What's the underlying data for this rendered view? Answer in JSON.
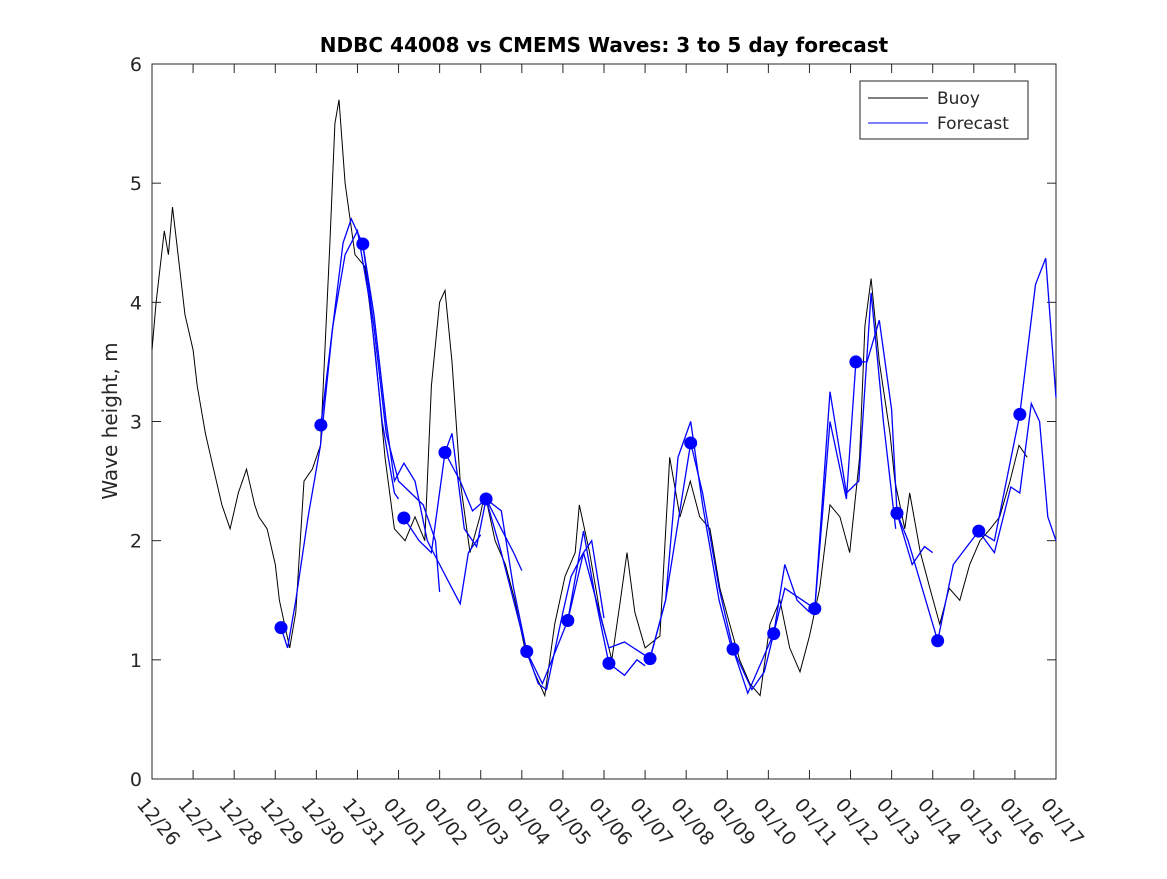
{
  "chart_data": {
    "type": "line",
    "title": "NDBC 44008 vs CMEMS Waves: 3 to 5 day forecast",
    "xlabel": "",
    "ylabel": "Wave height, m",
    "xlim_days": [
      0,
      22
    ],
    "ylim": [
      0,
      6
    ],
    "yticks": [
      0,
      1,
      2,
      3,
      4,
      5,
      6
    ],
    "xtick_labels": [
      "12/26",
      "12/27",
      "12/28",
      "12/29",
      "12/30",
      "12/31",
      "01/01",
      "01/02",
      "01/03",
      "01/04",
      "01/05",
      "01/06",
      "01/07",
      "01/08",
      "01/09",
      "01/10",
      "01/11",
      "01/12",
      "01/13",
      "01/14",
      "01/15",
      "01/16",
      "01/17"
    ],
    "legend": {
      "placement": "top-right",
      "entries": [
        "Buoy",
        "Forecast"
      ]
    },
    "colors": {
      "buoy": "#000000",
      "forecast": "#0000ff"
    },
    "buoy": [
      [
        0,
        3.6
      ],
      [
        0.1,
        4.0
      ],
      [
        0.2,
        4.3
      ],
      [
        0.3,
        4.6
      ],
      [
        0.4,
        4.4
      ],
      [
        0.5,
        4.8
      ],
      [
        0.6,
        4.5
      ],
      [
        0.7,
        4.2
      ],
      [
        0.8,
        3.9
      ],
      [
        1.0,
        3.6
      ],
      [
        1.1,
        3.3
      ],
      [
        1.2,
        3.1
      ],
      [
        1.3,
        2.9
      ],
      [
        1.5,
        2.6
      ],
      [
        1.7,
        2.3
      ],
      [
        1.9,
        2.1
      ],
      [
        2.1,
        2.4
      ],
      [
        2.3,
        2.6
      ],
      [
        2.5,
        2.3
      ],
      [
        2.6,
        2.2
      ],
      [
        2.8,
        2.1
      ],
      [
        3.0,
        1.8
      ],
      [
        3.1,
        1.5
      ],
      [
        3.35,
        1.1
      ],
      [
        3.5,
        1.4
      ],
      [
        3.7,
        2.5
      ],
      [
        3.9,
        2.6
      ],
      [
        4.1,
        2.8
      ],
      [
        4.33,
        4.5
      ],
      [
        4.45,
        5.5
      ],
      [
        4.55,
        5.7
      ],
      [
        4.7,
        5.0
      ],
      [
        4.94,
        4.4
      ],
      [
        5.18,
        4.3
      ],
      [
        5.43,
        3.6
      ],
      [
        5.67,
        2.7
      ],
      [
        5.9,
        2.1
      ],
      [
        6.16,
        2.0
      ],
      [
        6.4,
        2.2
      ],
      [
        6.64,
        2.0
      ],
      [
        6.8,
        3.3
      ],
      [
        7.0,
        4.0
      ],
      [
        7.13,
        4.1
      ],
      [
        7.3,
        3.5
      ],
      [
        7.5,
        2.5
      ],
      [
        7.74,
        1.9
      ],
      [
        7.98,
        2.2
      ],
      [
        8.1,
        2.4
      ],
      [
        8.35,
        2.0
      ],
      [
        8.6,
        1.8
      ],
      [
        8.83,
        1.5
      ],
      [
        9.07,
        1.1
      ],
      [
        9.3,
        0.9
      ],
      [
        9.56,
        0.7
      ],
      [
        9.8,
        1.3
      ],
      [
        10.05,
        1.7
      ],
      [
        10.3,
        1.9
      ],
      [
        10.4,
        2.3
      ],
      [
        10.65,
        1.9
      ],
      [
        10.9,
        1.4
      ],
      [
        11.19,
        1.0
      ],
      [
        11.4,
        1.5
      ],
      [
        11.56,
        1.9
      ],
      [
        11.75,
        1.4
      ],
      [
        12.0,
        1.1
      ],
      [
        12.36,
        1.2
      ],
      [
        12.6,
        2.7
      ],
      [
        12.85,
        2.2
      ],
      [
        13.1,
        2.5
      ],
      [
        13.33,
        2.2
      ],
      [
        13.58,
        2.1
      ],
      [
        13.82,
        1.6
      ],
      [
        14.06,
        1.3
      ],
      [
        14.3,
        1.0
      ],
      [
        14.55,
        0.8
      ],
      [
        14.8,
        0.7
      ],
      [
        15.04,
        1.3
      ],
      [
        15.28,
        1.5
      ],
      [
        15.52,
        1.1
      ],
      [
        15.77,
        0.9
      ],
      [
        16.0,
        1.2
      ],
      [
        16.25,
        1.6
      ],
      [
        16.5,
        2.3
      ],
      [
        16.74,
        2.2
      ],
      [
        16.98,
        1.9
      ],
      [
        17.22,
        2.7
      ],
      [
        17.35,
        3.8
      ],
      [
        17.5,
        4.2
      ],
      [
        17.7,
        3.5
      ],
      [
        17.96,
        2.9
      ],
      [
        18.08,
        2.5
      ],
      [
        18.32,
        2.1
      ],
      [
        18.44,
        2.4
      ],
      [
        18.7,
        1.9
      ],
      [
        18.93,
        1.6
      ],
      [
        19.17,
        1.3
      ],
      [
        19.4,
        1.6
      ],
      [
        19.66,
        1.5
      ],
      [
        19.9,
        1.8
      ],
      [
        20.15,
        2.0
      ],
      [
        20.4,
        2.1
      ],
      [
        20.63,
        2.2
      ],
      [
        20.88,
        2.5
      ],
      [
        21.1,
        2.8
      ],
      [
        21.3,
        2.7
      ]
    ],
    "forecast_segments": [
      [
        [
          3.14,
          1.27
        ],
        [
          3.3,
          1.1
        ],
        [
          3.5,
          1.5
        ],
        [
          3.8,
          2.2
        ],
        [
          4.1,
          2.8
        ],
        [
          4.4,
          3.8
        ],
        [
          4.7,
          4.4
        ],
        [
          5.0,
          4.6
        ],
        [
          5.3,
          4.0
        ],
        [
          5.6,
          3.0
        ],
        [
          5.9,
          2.4
        ],
        [
          6.0,
          2.35
        ]
      ],
      [
        [
          4.11,
          2.97
        ],
        [
          4.4,
          3.8
        ],
        [
          4.65,
          4.5
        ],
        [
          4.85,
          4.7
        ],
        [
          5.13,
          4.49
        ],
        [
          5.4,
          3.8
        ],
        [
          5.7,
          2.9
        ],
        [
          6.0,
          2.5
        ],
        [
          6.3,
          2.4
        ],
        [
          6.6,
          2.3
        ],
        [
          6.9,
          2.0
        ],
        [
          7.0,
          1.57
        ]
      ],
      [
        [
          5.13,
          4.49
        ],
        [
          5.4,
          3.9
        ],
        [
          5.7,
          3.0
        ],
        [
          5.9,
          2.5
        ],
        [
          6.13,
          2.65
        ],
        [
          6.4,
          2.5
        ],
        [
          6.7,
          2.0
        ],
        [
          7.0,
          1.8
        ],
        [
          7.3,
          1.6
        ],
        [
          7.5,
          1.47
        ],
        [
          7.7,
          1.9
        ],
        [
          8.0,
          2.05
        ]
      ],
      [
        [
          6.13,
          2.19
        ],
        [
          6.5,
          2.0
        ],
        [
          6.8,
          1.9
        ],
        [
          7.13,
          2.74
        ],
        [
          7.3,
          2.9
        ],
        [
          7.6,
          2.1
        ],
        [
          7.9,
          1.95
        ],
        [
          8.13,
          2.35
        ],
        [
          8.5,
          2.1
        ],
        [
          8.8,
          1.9
        ],
        [
          9.0,
          1.75
        ]
      ],
      [
        [
          7.13,
          2.74
        ],
        [
          7.5,
          2.5
        ],
        [
          7.8,
          2.25
        ],
        [
          8.13,
          2.35
        ],
        [
          8.5,
          2.25
        ],
        [
          8.8,
          1.6
        ],
        [
          9.12,
          1.07
        ],
        [
          9.4,
          0.8
        ],
        [
          9.6,
          0.75
        ],
        [
          10.0,
          1.4
        ],
        [
          10.2,
          1.7
        ],
        [
          10.5,
          1.9
        ],
        [
          10.7,
          2.0
        ],
        [
          11.0,
          1.35
        ]
      ],
      [
        [
          8.13,
          2.35
        ],
        [
          8.5,
          1.9
        ],
        [
          9.12,
          1.07
        ],
        [
          9.5,
          0.8
        ],
        [
          10.12,
          1.33
        ],
        [
          10.5,
          2.08
        ],
        [
          10.8,
          1.5
        ],
        [
          11.12,
          0.97
        ],
        [
          11.5,
          0.87
        ],
        [
          11.8,
          1.0
        ],
        [
          12.0,
          0.95
        ]
      ],
      [
        [
          10.12,
          1.33
        ],
        [
          10.5,
          1.9
        ],
        [
          11.12,
          1.1
        ],
        [
          11.5,
          1.15
        ],
        [
          12.12,
          1.01
        ],
        [
          12.5,
          1.5
        ],
        [
          12.8,
          2.7
        ],
        [
          13.11,
          3.0
        ],
        [
          13.4,
          2.3
        ],
        [
          13.8,
          1.5
        ],
        [
          14.1,
          1.1
        ]
      ],
      [
        [
          12.12,
          1.01
        ],
        [
          12.5,
          1.5
        ],
        [
          13.11,
          2.82
        ],
        [
          13.4,
          2.4
        ],
        [
          13.8,
          1.6
        ],
        [
          14.14,
          1.09
        ],
        [
          14.6,
          0.75
        ],
        [
          14.9,
          0.9
        ],
        [
          15.13,
          1.22
        ],
        [
          15.4,
          1.8
        ],
        [
          15.7,
          1.5
        ],
        [
          16.0,
          1.4
        ]
      ],
      [
        [
          14.14,
          1.09
        ],
        [
          14.5,
          0.72
        ],
        [
          15.13,
          1.22
        ],
        [
          15.4,
          1.6
        ],
        [
          16.13,
          1.43
        ],
        [
          16.5,
          3.25
        ],
        [
          16.9,
          2.4
        ],
        [
          17.2,
          2.5
        ],
        [
          17.5,
          4.08
        ],
        [
          17.8,
          3.0
        ],
        [
          18.1,
          2.1
        ]
      ],
      [
        [
          16.13,
          1.43
        ],
        [
          16.5,
          3.0
        ],
        [
          16.9,
          2.35
        ],
        [
          17.13,
          3.5
        ],
        [
          17.4,
          3.5
        ],
        [
          17.7,
          3.85
        ],
        [
          18.0,
          3.1
        ],
        [
          18.13,
          2.23
        ],
        [
          18.5,
          1.8
        ],
        [
          18.8,
          1.95
        ],
        [
          19.0,
          1.9
        ]
      ],
      [
        [
          18.13,
          2.23
        ],
        [
          18.4,
          2.0
        ],
        [
          19.12,
          1.16
        ],
        [
          19.5,
          1.8
        ],
        [
          20.12,
          2.08
        ],
        [
          20.5,
          2.0
        ],
        [
          21.12,
          3.06
        ],
        [
          21.5,
          4.15
        ],
        [
          21.75,
          4.37
        ],
        [
          22.0,
          3.2
        ]
      ],
      [
        [
          20.12,
          2.08
        ],
        [
          20.5,
          1.9
        ],
        [
          20.9,
          2.45
        ],
        [
          21.12,
          2.4
        ],
        [
          21.4,
          3.15
        ],
        [
          21.6,
          3.0
        ],
        [
          21.8,
          2.2
        ],
        [
          22.0,
          2.0
        ]
      ]
    ],
    "forecast_points": [
      [
        3.14,
        1.27
      ],
      [
        4.11,
        2.97
      ],
      [
        5.13,
        4.49
      ],
      [
        6.13,
        2.19
      ],
      [
        7.13,
        2.74
      ],
      [
        8.13,
        2.35
      ],
      [
        9.12,
        1.07
      ],
      [
        10.12,
        1.33
      ],
      [
        11.12,
        0.97
      ],
      [
        12.12,
        1.01
      ],
      [
        13.11,
        2.82
      ],
      [
        14.14,
        1.09
      ],
      [
        15.13,
        1.22
      ],
      [
        16.13,
        1.43
      ],
      [
        17.13,
        3.5
      ],
      [
        18.13,
        2.23
      ],
      [
        19.12,
        1.16
      ],
      [
        20.12,
        2.08
      ],
      [
        21.12,
        3.06
      ]
    ]
  }
}
